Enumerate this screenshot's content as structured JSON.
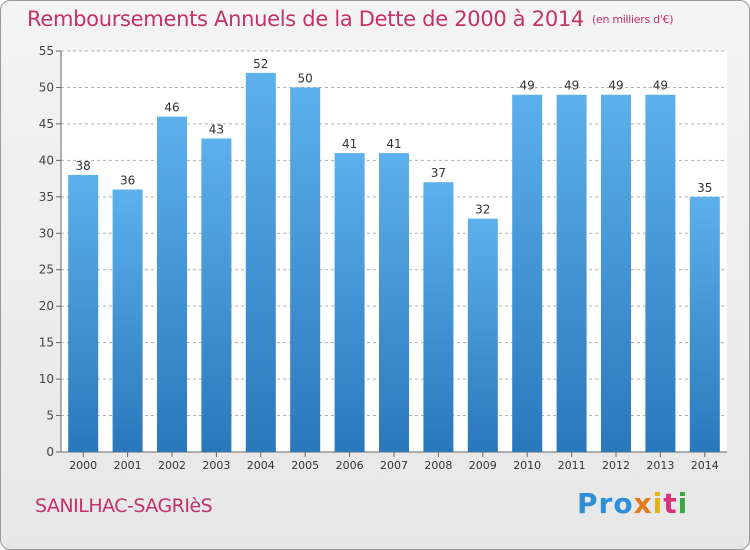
{
  "title": {
    "main": "Remboursements Annuels de la Dette de 2000 à 2014",
    "unit": "(en milliers d'€)"
  },
  "commune": "SANILHAC-SAGRIèS",
  "logo": {
    "letters": [
      "Pro",
      "x",
      "i",
      "t",
      "i"
    ],
    "text": "Proxiti"
  },
  "colors": {
    "title": "#c4306a",
    "bar_top": "#5cb0ec",
    "bar_bottom": "#2a78bc",
    "grid": "#b0b0b0"
  },
  "chart_data": {
    "type": "bar",
    "title": "Remboursements Annuels de la Dette de 2000 à 2014",
    "categories": [
      "2000",
      "2001",
      "2002",
      "2003",
      "2004",
      "2005",
      "2006",
      "2007",
      "2008",
      "2009",
      "2010",
      "2011",
      "2012",
      "2013",
      "2014"
    ],
    "values": [
      38,
      36,
      46,
      43,
      52,
      50,
      41,
      41,
      37,
      32,
      49,
      49,
      49,
      49,
      35
    ],
    "ylim": [
      0,
      55
    ],
    "yticks": [
      0,
      5,
      10,
      15,
      20,
      25,
      30,
      35,
      40,
      45,
      50,
      55
    ],
    "grid": true,
    "xlabel": "",
    "ylabel": ""
  }
}
